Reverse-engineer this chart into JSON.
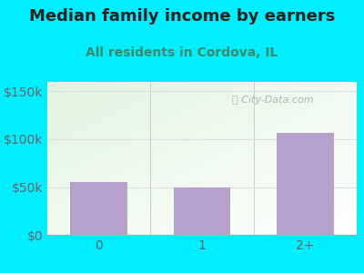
{
  "title": "Median family income by earners",
  "subtitle": "All residents in Cordova, IL",
  "categories": [
    "0",
    "1",
    "2+"
  ],
  "values": [
    55000,
    50000,
    107000
  ],
  "bar_color": "#b8a0cc",
  "ylim": [
    0,
    160000
  ],
  "yticks": [
    0,
    50000,
    100000,
    150000
  ],
  "ytick_labels": [
    "$0",
    "$50k",
    "$100k",
    "$150k"
  ],
  "background_outer": "#00eeff",
  "plot_bg_color": "#eaf5e8",
  "title_color": "#222222",
  "subtitle_color": "#3a8a6e",
  "tick_color": "#666666",
  "grid_color": "#dddddd",
  "watermark_text": "City-Data.com",
  "title_fontsize": 13,
  "subtitle_fontsize": 10,
  "tick_fontsize": 10,
  "bar_width": 0.55
}
